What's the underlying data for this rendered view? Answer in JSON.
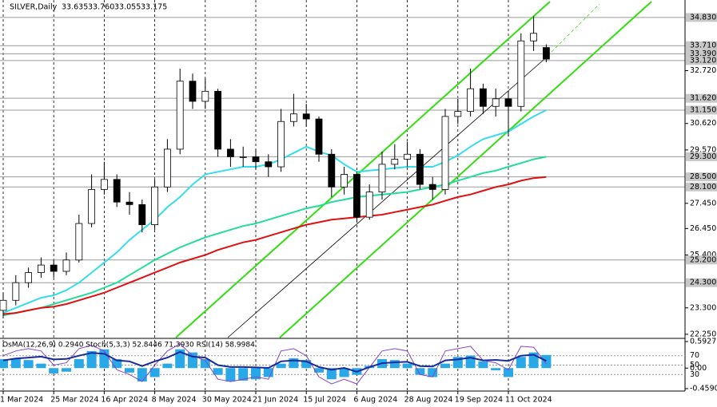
{
  "chart_data": {
    "type": "candlestick",
    "title": "SILVER,Daily",
    "header_values": [
      "33.635",
      "33.760",
      "33.055",
      "33.175"
    ],
    "categories": [
      "1 Mar 2024",
      null,
      null,
      null,
      "25 Mar 2024",
      null,
      null,
      null,
      "16 Apr 2024",
      null,
      null,
      null,
      "8 May 2024",
      null,
      null,
      null,
      "30 May 2024",
      null,
      null,
      null,
      "21 Jun 2024",
      null,
      null,
      null,
      "15 Jul 2024",
      null,
      null,
      null,
      "6 Aug 2024",
      null,
      null,
      null,
      "28 Aug 2024",
      null,
      null,
      null,
      "19 Sep 2024",
      null,
      null,
      null,
      "11 Oct 2024",
      null,
      null,
      null
    ],
    "open": [
      23.2,
      23.6,
      24.3,
      24.7,
      25.0,
      24.75,
      25.2,
      26.65,
      28.0,
      28.4,
      27.5,
      27.4,
      26.6,
      28.1,
      29.6,
      32.3,
      31.5,
      31.9,
      29.6,
      29.3,
      29.3,
      29.1,
      28.9,
      30.7,
      31.0,
      30.8,
      29.4,
      28.1,
      28.6,
      26.9,
      27.9,
      29.0,
      29.2,
      29.4,
      28.2,
      28.0,
      30.9,
      31.1,
      32.0,
      31.3,
      31.6,
      31.3,
      33.9,
      33.635
    ],
    "high": [
      23.9,
      24.6,
      24.9,
      25.3,
      25.2,
      25.5,
      27.0,
      28.6,
      29.1,
      28.6,
      27.9,
      27.6,
      28.4,
      30.0,
      32.8,
      32.6,
      32.4,
      32.0,
      30.0,
      29.7,
      29.6,
      29.4,
      31.2,
      31.8,
      31.4,
      30.9,
      29.6,
      28.9,
      28.7,
      28.2,
      29.5,
      29.8,
      29.9,
      29.6,
      28.5,
      31.2,
      31.6,
      32.8,
      32.2,
      32.0,
      31.9,
      34.2,
      34.87,
      33.76
    ],
    "low": [
      22.9,
      23.4,
      24.1,
      24.5,
      24.5,
      24.6,
      25.1,
      26.5,
      27.8,
      27.3,
      27.0,
      26.3,
      26.4,
      27.9,
      29.4,
      31.2,
      31.2,
      29.3,
      28.9,
      28.9,
      28.8,
      28.5,
      28.7,
      30.5,
      30.5,
      29.1,
      27.7,
      27.8,
      26.7,
      26.8,
      27.6,
      28.8,
      28.9,
      28.0,
      27.6,
      27.8,
      30.6,
      30.9,
      31.0,
      30.9,
      30.1,
      31.1,
      33.5,
      33.055
    ],
    "close": [
      23.6,
      24.3,
      24.7,
      25.0,
      24.75,
      25.2,
      26.65,
      28.0,
      28.4,
      27.5,
      27.4,
      26.6,
      28.1,
      29.6,
      32.3,
      31.5,
      31.9,
      29.6,
      29.3,
      29.3,
      29.1,
      28.9,
      30.7,
      31.0,
      30.8,
      29.4,
      28.1,
      28.6,
      26.9,
      27.9,
      29.0,
      29.2,
      29.4,
      28.2,
      28.0,
      30.9,
      31.1,
      32.0,
      31.3,
      31.6,
      31.3,
      33.9,
      34.2,
      33.175
    ],
    "candle_colors": {
      "up": "#ffffff",
      "down": "#000000",
      "outline": "#000000"
    },
    "lines": [
      {
        "color": "#33ddee",
        "values": [
          23.1,
          23.3,
          23.5,
          23.7,
          23.8,
          24.0,
          24.3,
          24.7,
          25.1,
          25.5,
          26.0,
          26.4,
          26.8,
          27.3,
          27.7,
          28.2,
          28.6,
          28.7,
          28.8,
          28.9,
          28.9,
          29.0,
          29.2,
          29.45,
          29.7,
          29.5,
          29.35,
          29.0,
          28.7,
          28.75,
          28.8,
          28.85,
          28.9,
          28.9,
          28.9,
          29.1,
          29.35,
          29.7,
          30.0,
          30.15,
          30.3,
          30.6,
          30.9,
          31.15
        ]
      },
      {
        "color": "#22dd99",
        "values": [
          23.0,
          23.1,
          23.2,
          23.3,
          23.45,
          23.6,
          23.75,
          23.9,
          24.1,
          24.3,
          24.6,
          24.9,
          25.2,
          25.45,
          25.7,
          25.9,
          26.1,
          26.25,
          26.4,
          26.55,
          26.65,
          26.8,
          26.95,
          27.1,
          27.25,
          27.35,
          27.5,
          27.6,
          27.7,
          27.75,
          27.8,
          27.85,
          27.9,
          28.0,
          28.1,
          28.2,
          28.35,
          28.5,
          28.65,
          28.75,
          28.9,
          29.05,
          29.2,
          29.3
        ]
      },
      {
        "color": "#e01010",
        "values": [
          23.05,
          23.1,
          23.2,
          23.3,
          23.35,
          23.45,
          23.6,
          23.75,
          23.9,
          24.1,
          24.3,
          24.5,
          24.7,
          24.9,
          25.1,
          25.25,
          25.4,
          25.6,
          25.75,
          25.9,
          26.0,
          26.15,
          26.3,
          26.45,
          26.6,
          26.7,
          26.8,
          26.85,
          26.9,
          26.95,
          27.0,
          27.1,
          27.2,
          27.3,
          27.4,
          27.55,
          27.7,
          27.8,
          27.95,
          28.1,
          28.2,
          28.35,
          28.45,
          28.5
        ]
      }
    ],
    "ylim": [
      22.12,
      35.46
    ],
    "yticks": [
      {
        "value": 32.72,
        "label": "32.720"
      },
      {
        "value": 30.62,
        "label": "30.620"
      },
      {
        "value": 29.57,
        "label": "29.570"
      },
      {
        "value": 27.45,
        "label": "27.450"
      },
      {
        "value": 26.45,
        "label": "26.450"
      },
      {
        "value": 25.4,
        "label": "25.400"
      },
      {
        "value": 23.3,
        "label": "23.300"
      },
      {
        "value": 22.25,
        "label": "22.250"
      }
    ],
    "levels": [
      {
        "value": 34.83,
        "label": "34.830"
      },
      {
        "value": 33.71,
        "label": "33.710"
      },
      {
        "value": 33.39,
        "label": "33.390"
      },
      {
        "value": 33.12,
        "label": "33.120"
      },
      {
        "value": 31.62,
        "label": "31.620"
      },
      {
        "value": 31.15,
        "label": "31.150"
      },
      {
        "value": 29.3,
        "label": "29.300"
      },
      {
        "value": 28.5,
        "label": "28.500"
      },
      {
        "value": 28.1,
        "label": "28.100"
      },
      {
        "value": 25.2,
        "label": "25.200"
      },
      {
        "value": 24.3,
        "label": "24.300"
      }
    ],
    "oscillator": {
      "label": "OsMA(12,26,9) 0.2940 Stoch(5,3,3) 52.8446 71.3930 RSI(14) 58.9984",
      "osma": {
        "color": "#29a8e8",
        "values": [
          0.2,
          0.22,
          0.18,
          0.1,
          -0.12,
          -0.08,
          0.2,
          0.38,
          0.42,
          0.2,
          -0.1,
          -0.3,
          -0.2,
          0.1,
          0.42,
          0.35,
          0.2,
          -0.15,
          -0.3,
          -0.28,
          -0.25,
          -0.2,
          0.1,
          0.22,
          0.18,
          -0.1,
          -0.25,
          -0.2,
          -0.15,
          0.05,
          0.2,
          0.18,
          0.1,
          -0.15,
          -0.2,
          0.1,
          0.25,
          0.28,
          0.15,
          -0.05,
          -0.2,
          0.25,
          0.35,
          0.294
        ]
      },
      "stoch": {
        "color": "#8844cc",
        "values": [
          70,
          80,
          85,
          80,
          50,
          55,
          85,
          92,
          80,
          40,
          30,
          15,
          50,
          80,
          95,
          70,
          60,
          20,
          15,
          20,
          25,
          20,
          80,
          85,
          70,
          25,
          10,
          20,
          10,
          45,
          80,
          85,
          80,
          30,
          25,
          80,
          85,
          90,
          60,
          55,
          40,
          90,
          88,
          52.8446
        ]
      },
      "rsi": {
        "color": "#1a2a99",
        "values": [
          60,
          64,
          66,
          68,
          62,
          63,
          70,
          76,
          74,
          60,
          58,
          48,
          58,
          66,
          78,
          68,
          66,
          50,
          46,
          46,
          45,
          44,
          58,
          60,
          58,
          46,
          40,
          44,
          36,
          46,
          54,
          56,
          57,
          48,
          47,
          60,
          62,
          66,
          60,
          61,
          59,
          70,
          72,
          58.9984
        ]
      },
      "ylim": [
        -0.459,
        0.5927
      ],
      "yticks": [
        {
          "value": 0.5927,
          "label": "0.5927"
        },
        {
          "value": 0,
          "label": "0.00"
        },
        {
          "value": -0.459,
          "label": "-0.4590"
        }
      ],
      "osc_lim": [
        0,
        100
      ],
      "levels": [
        70,
        50,
        30
      ]
    }
  }
}
